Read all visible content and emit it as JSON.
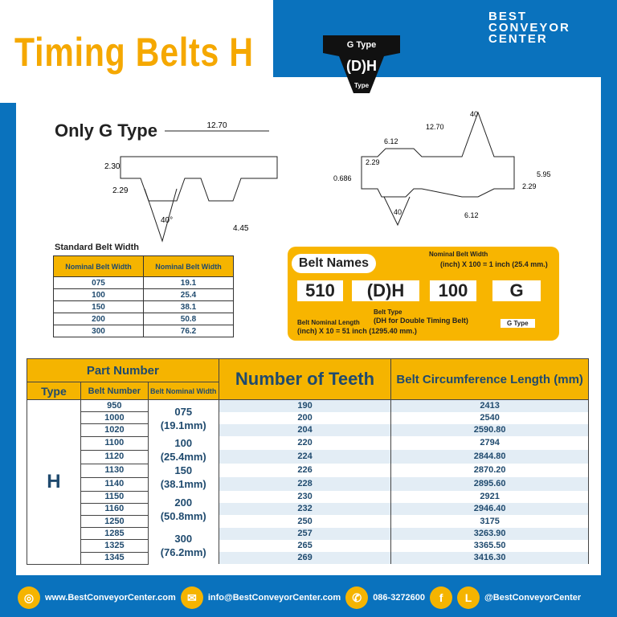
{
  "title": "Timing Belts H",
  "logo": {
    "line1": "BEST",
    "line2": "CONVEYOR",
    "line3": "CENTER"
  },
  "gtype_badge": {
    "top": "G Type",
    "middle": "(D)H",
    "bottom": "Type"
  },
  "diagram_left": {
    "label": "Only G Type",
    "dims": [
      "12.70",
      "2.30",
      "2.29",
      "40°",
      "4.45"
    ]
  },
  "diagram_right": {
    "dims": [
      "40",
      "12.70",
      "6.12",
      "0.686",
      "2.29",
      "5.95",
      "2.29",
      "40",
      "6.12"
    ]
  },
  "standard_width": {
    "title": "Standard Belt Width",
    "headers": [
      "Nominal Belt Width",
      "Nominal Belt Width"
    ],
    "rows": [
      [
        "075",
        "19.1"
      ],
      [
        "100",
        "25.4"
      ],
      [
        "150",
        "38.1"
      ],
      [
        "200",
        "50.8"
      ],
      [
        "300",
        "76.2"
      ]
    ]
  },
  "belt_names": {
    "title": "Belt Names",
    "parts": [
      "510",
      "(D)H",
      "100",
      "G"
    ],
    "width_label": "Nominal Belt Width",
    "width_formula": "(inch) X 100 = 1 inch (25.4 mm.)",
    "length_label": "Belt Nominal Length",
    "length_formula": "(inch) X 10 = 51 inch (1295.40 mm.)",
    "type_label": "Belt Type",
    "type_desc": "(DH for Double Timing Belt)",
    "g_label": "G Type"
  },
  "main_table": {
    "part_number": "Part Number",
    "type": "Type",
    "belt_number": "Belt Number",
    "nominal_width": "Belt Nominal Width",
    "teeth": "Number of Teeth",
    "circumference": "Belt Circumference Length (mm)",
    "type_value": "H",
    "widths": [
      {
        "code": "075",
        "mm": "(19.1mm)"
      },
      {
        "code": "100",
        "mm": "(25.4mm)"
      },
      {
        "code": "150",
        "mm": "(38.1mm)"
      },
      {
        "code": "200",
        "mm": "(50.8mm)"
      },
      {
        "code": "300",
        "mm": "(76.2mm)"
      }
    ],
    "rows": [
      [
        "950",
        "190",
        "2413"
      ],
      [
        "1000",
        "200",
        "2540"
      ],
      [
        "1020",
        "204",
        "2590.80"
      ],
      [
        "1100",
        "220",
        "2794"
      ],
      [
        "1120",
        "224",
        "2844.80"
      ],
      [
        "1130",
        "226",
        "2870.20"
      ],
      [
        "1140",
        "228",
        "2895.60"
      ],
      [
        "1150",
        "230",
        "2921"
      ],
      [
        "1160",
        "232",
        "2946.40"
      ],
      [
        "1250",
        "250",
        "3175"
      ],
      [
        "1285",
        "257",
        "3263.90"
      ],
      [
        "1325",
        "265",
        "3365.50"
      ],
      [
        "1345",
        "269",
        "3416.30"
      ]
    ]
  },
  "footer": {
    "web": "www.BestConveyorCenter.com",
    "email": "info@BestConveyorCenter.com",
    "phone": "086-3272600",
    "social": "@BestConveyorCenter"
  },
  "colors": {
    "blue": "#0a72bd",
    "orange": "#f5b400",
    "navy": "#1f4a6e"
  }
}
